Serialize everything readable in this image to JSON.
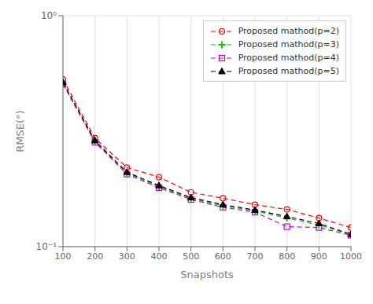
{
  "chart_data": {
    "type": "line",
    "xlabel": "Snapshots",
    "ylabel": "RMSE(°)",
    "log": "y",
    "grid": true,
    "legend": "upper right",
    "x": [
      100,
      200,
      300,
      400,
      500,
      600,
      700,
      800,
      900,
      1000
    ],
    "xlim": [
      100,
      1000
    ],
    "xticks": [
      100,
      200,
      300,
      400,
      500,
      600,
      700,
      800,
      900,
      1000
    ],
    "ylim": [
      0.1,
      1.0
    ],
    "yticks": [
      {
        "value": 0.1,
        "label": "10⁻¹"
      },
      {
        "value": 1.0,
        "label": "10⁰"
      }
    ],
    "series": [
      {
        "name": "Proposed mathod(p=2)",
        "color": "#ff0000",
        "marker": "circle",
        "line_style": "dashed",
        "values": [
          0.53,
          0.295,
          0.22,
          0.2,
          0.172,
          0.162,
          0.152,
          0.145,
          0.133,
          0.121
        ]
      },
      {
        "name": "Proposed mathod(p=3)",
        "color": "#00cc00",
        "marker": "plus",
        "line_style": "dashed",
        "values": [
          0.51,
          0.285,
          0.208,
          0.182,
          0.162,
          0.15,
          0.143,
          0.133,
          0.124,
          0.113
        ]
      },
      {
        "name": "Proposed mathod(p=4)",
        "color": "#cc00cc",
        "marker": "square",
        "line_style": "dashed",
        "values": [
          0.505,
          0.283,
          0.206,
          0.18,
          0.16,
          0.148,
          0.141,
          0.122,
          0.121,
          0.112
        ]
      },
      {
        "name": "Proposed mathod(p=5)",
        "color": "#000000",
        "marker": "triangle",
        "line_style": "dashed",
        "values": [
          0.515,
          0.288,
          0.21,
          0.184,
          0.163,
          0.152,
          0.144,
          0.135,
          0.126,
          0.113
        ]
      }
    ]
  }
}
